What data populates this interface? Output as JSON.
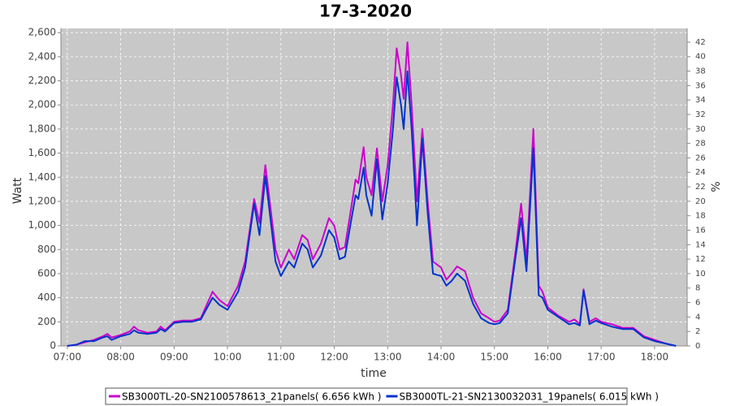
{
  "chart_data": {
    "type": "line",
    "title": "17-3-2020",
    "xlabel": "time",
    "ylabel": "Watt",
    "y2label": "%",
    "x": [
      7.0,
      7.17,
      7.33,
      7.5,
      7.67,
      7.75,
      7.83,
      8.0,
      8.17,
      8.25,
      8.33,
      8.5,
      8.67,
      8.75,
      8.83,
      9.0,
      9.17,
      9.33,
      9.5,
      9.72,
      9.85,
      10.0,
      10.2,
      10.33,
      10.5,
      10.6,
      10.71,
      10.9,
      11.0,
      11.15,
      11.25,
      11.4,
      11.5,
      11.6,
      11.75,
      11.9,
      12.0,
      12.1,
      12.2,
      12.3,
      12.4,
      12.45,
      12.55,
      12.6,
      12.7,
      12.8,
      12.9,
      13.0,
      13.1,
      13.17,
      13.25,
      13.3,
      13.37,
      13.45,
      13.55,
      13.65,
      13.75,
      13.85,
      14.0,
      14.1,
      14.2,
      14.3,
      14.45,
      14.6,
      14.75,
      14.9,
      15.0,
      15.1,
      15.25,
      15.4,
      15.5,
      15.6,
      15.73,
      15.83,
      15.9,
      16.0,
      16.2,
      16.4,
      16.5,
      16.6,
      16.67,
      16.78,
      16.9,
      17.0,
      17.2,
      17.4,
      17.6,
      17.8,
      18.0,
      18.2,
      18.4
    ],
    "series": [
      {
        "name": "SB3000TL-20-SN2100578613_21panels( 6.656 kWh )",
        "color": "#cc00cc",
        "values": [
          0,
          10,
          30,
          50,
          80,
          100,
          70,
          90,
          120,
          160,
          130,
          110,
          120,
          160,
          130,
          200,
          210,
          210,
          230,
          450,
          380,
          330,
          500,
          700,
          1220,
          1020,
          1500,
          800,
          650,
          800,
          720,
          920,
          880,
          720,
          850,
          1060,
          1000,
          800,
          820,
          1100,
          1380,
          1350,
          1650,
          1400,
          1250,
          1640,
          1200,
          1500,
          2000,
          2470,
          2250,
          2050,
          2520,
          2000,
          1200,
          1800,
          1200,
          700,
          650,
          550,
          600,
          660,
          620,
          400,
          270,
          230,
          200,
          210,
          300,
          800,
          1180,
          700,
          1800,
          500,
          450,
          320,
          250,
          200,
          220,
          180,
          470,
          200,
          230,
          200,
          180,
          150,
          150,
          80,
          50,
          20,
          0
        ]
      },
      {
        "name": "SB3000TL-21-SN2130032031_19panels( 6.015 kWh )",
        "color": "#0033cc",
        "values": [
          0,
          10,
          40,
          40,
          70,
          80,
          50,
          80,
          100,
          130,
          110,
          100,
          110,
          140,
          120,
          190,
          200,
          200,
          220,
          400,
          340,
          300,
          450,
          650,
          1180,
          920,
          1410,
          700,
          580,
          700,
          650,
          850,
          800,
          650,
          750,
          960,
          900,
          720,
          740,
          1000,
          1250,
          1220,
          1480,
          1250,
          1080,
          1550,
          1050,
          1350,
          1800,
          2230,
          2000,
          1800,
          2280,
          1800,
          1000,
          1720,
          1100,
          600,
          580,
          500,
          540,
          600,
          540,
          350,
          230,
          190,
          180,
          190,
          270,
          750,
          1060,
          620,
          1640,
          420,
          400,
          300,
          240,
          180,
          190,
          170,
          460,
          180,
          210,
          190,
          160,
          140,
          140,
          70,
          40,
          20,
          0
        ]
      }
    ],
    "xlim": [
      6.88,
      18.61
    ],
    "xticks": [
      {
        "value": 7,
        "label": "07:00"
      },
      {
        "value": 8,
        "label": "08:00"
      },
      {
        "value": 9,
        "label": "09:00"
      },
      {
        "value": 10,
        "label": "10:00"
      },
      {
        "value": 11,
        "label": "11:00"
      },
      {
        "value": 12,
        "label": "12:00"
      },
      {
        "value": 13,
        "label": "13:00"
      },
      {
        "value": 14,
        "label": "14:00"
      },
      {
        "value": 15,
        "label": "15:00"
      },
      {
        "value": 16,
        "label": "16:00"
      },
      {
        "value": 17,
        "label": "17:00"
      },
      {
        "value": 18,
        "label": "18:00"
      }
    ],
    "ylim": [
      0,
      2635
    ],
    "yticks": [
      0,
      200,
      400,
      600,
      800,
      {
        "value": 1000,
        "label": "1,000"
      },
      {
        "value": 1200,
        "label": "1,200"
      },
      {
        "value": 1400,
        "label": "1,400"
      },
      {
        "value": 1600,
        "label": "1,600"
      },
      {
        "value": 1800,
        "label": "1,800"
      },
      {
        "value": 2000,
        "label": "2,000"
      },
      {
        "value": 2200,
        "label": "2,200"
      },
      {
        "value": 2400,
        "label": "2,400"
      },
      {
        "value": 2600,
        "label": "2,600"
      }
    ],
    "y2lim": [
      0,
      43.9
    ],
    "y2ticks": [
      0,
      2,
      4,
      6,
      8,
      10,
      12,
      14,
      16,
      18,
      20,
      22,
      24,
      26,
      28,
      30,
      32,
      34,
      36,
      38,
      40,
      42
    ],
    "grid": true
  }
}
